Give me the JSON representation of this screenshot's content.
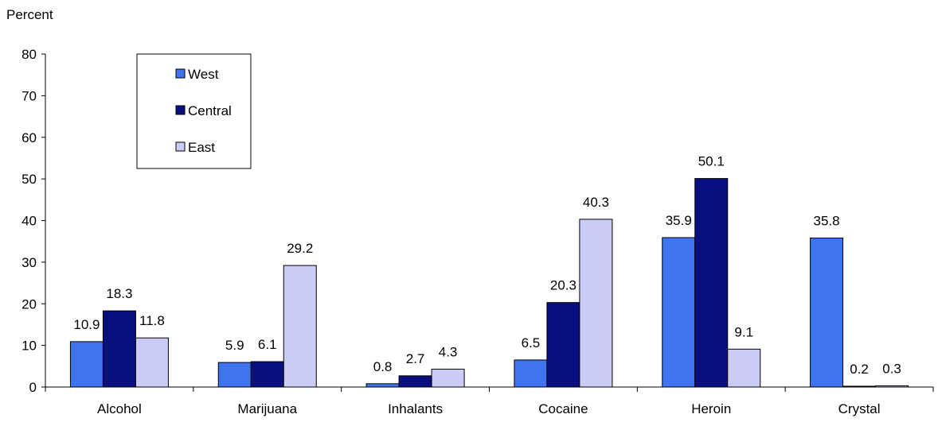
{
  "chart_data": {
    "type": "bar",
    "ylabel": "Percent",
    "ylim": [
      0,
      80
    ],
    "yticks": [
      0,
      10,
      20,
      30,
      40,
      50,
      60,
      70,
      80
    ],
    "categories": [
      "Alcohol",
      "Marijuana",
      "Inhalants",
      "Cocaine",
      "Heroin",
      "Crystal"
    ],
    "series": [
      {
        "name": "West",
        "color": "#3f74f0",
        "values": [
          10.9,
          5.9,
          0.8,
          6.5,
          35.9,
          35.8
        ]
      },
      {
        "name": "Central",
        "color": "#0a0f80",
        "values": [
          18.3,
          6.1,
          2.7,
          20.3,
          50.1,
          0.2
        ]
      },
      {
        "name": "East",
        "color": "#cbcbf7",
        "values": [
          11.8,
          29.2,
          4.3,
          40.3,
          9.1,
          0.3
        ]
      }
    ],
    "legend_position": "top-left",
    "grid": false,
    "data_labels": true
  }
}
